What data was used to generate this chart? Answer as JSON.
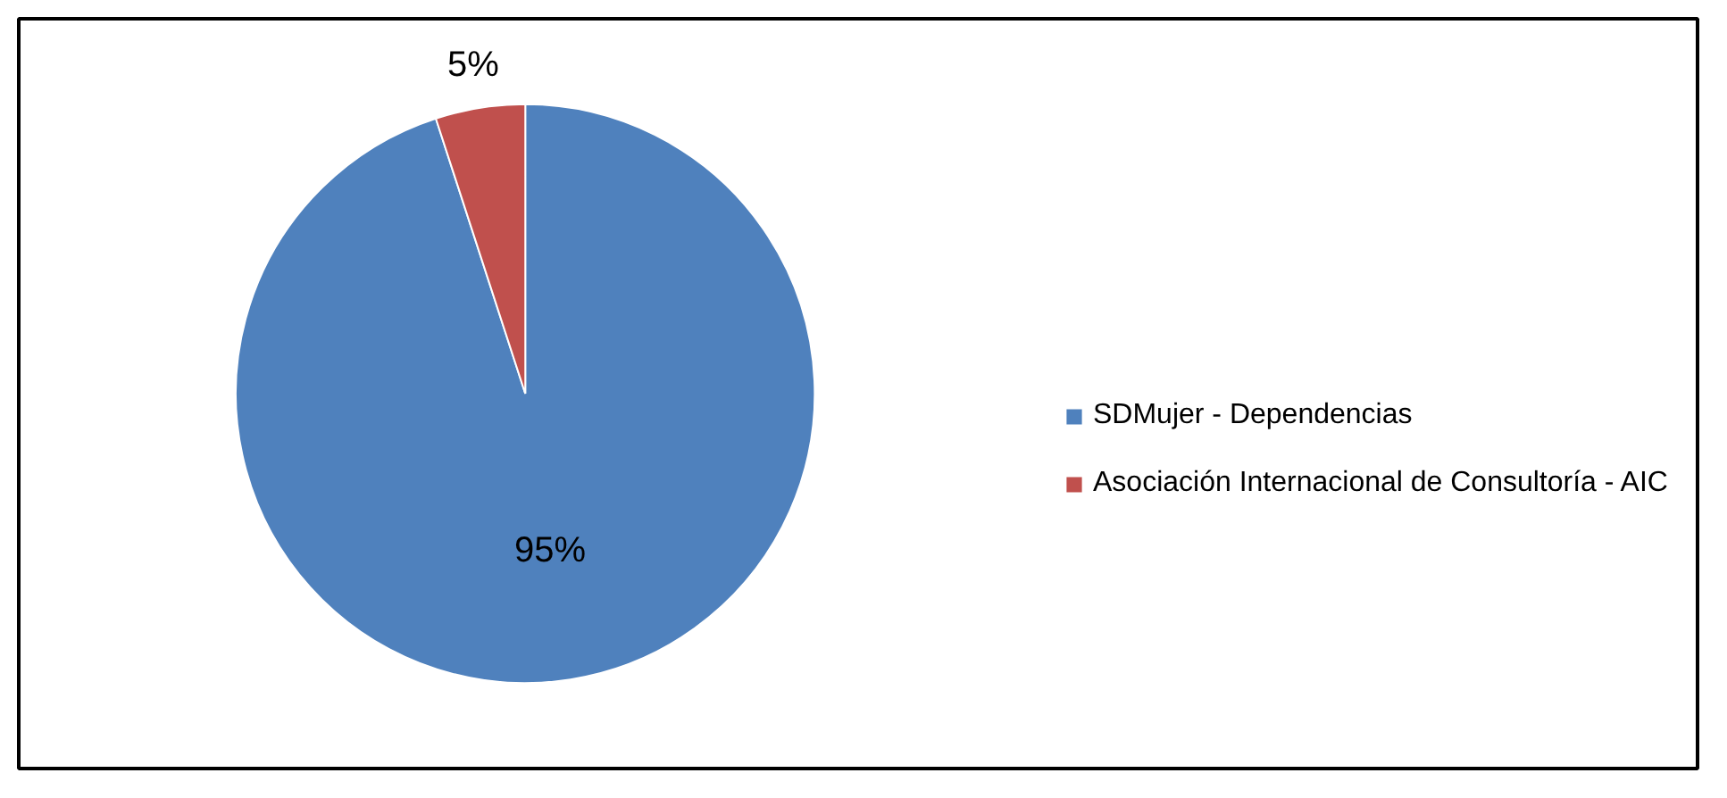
{
  "chart_data": {
    "type": "pie",
    "categories": [
      "SDMujer - Dependencias",
      "Asociación Internacional de Consultoría - AIC"
    ],
    "values": [
      95,
      5
    ],
    "colors": [
      "#4f81bd",
      "#c0504d"
    ],
    "value_labels": [
      "95%",
      "5%"
    ],
    "legend": "right"
  }
}
